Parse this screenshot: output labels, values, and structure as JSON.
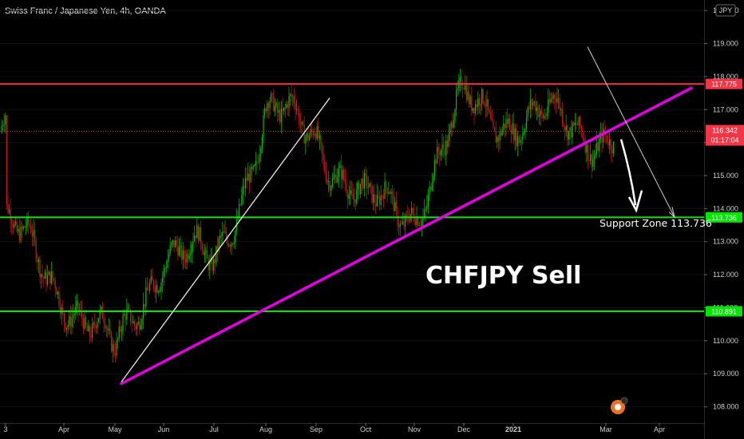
{
  "header": {
    "title": "Swiss Franc / Japanese Yen, 4h, OANDA",
    "currency_button": "JPY"
  },
  "colors": {
    "resistance": "#f23645",
    "support": "#00e600",
    "trendline": "#e100e1",
    "bull_candle": "#00c000",
    "bear_candle": "#d11818",
    "background": "#000000"
  },
  "chart_data": {
    "type": "line",
    "symbol": "CHFJPY",
    "timeframe": "4h",
    "ylim": [
      107.7,
      120.1
    ],
    "x_ticks": [
      "3",
      "Apr",
      "May",
      "Jun",
      "Jul",
      "Aug",
      "Sep",
      "Oct",
      "Nov",
      "Dec",
      "2021",
      "Mar",
      "Apr"
    ],
    "y_ticks": [
      "120.000",
      "119.000",
      "118.000",
      "117.000",
      "116.000",
      "115.000",
      "114.000",
      "113.000",
      "112.000",
      "111.000",
      "110.000",
      "109.000",
      "108.000"
    ],
    "approx_close_path": {
      "x": [
        "3",
        "Apr",
        "May",
        "Jun",
        "Jul",
        "Aug",
        "Sep",
        "Oct",
        "Nov",
        "Dec",
        "2021",
        "Mar"
      ],
      "y": [
        113.5,
        111.5,
        109.5,
        112.8,
        112.2,
        116.8,
        116.3,
        114.0,
        114.0,
        117.1,
        116.8,
        116.3
      ]
    },
    "horizontal_levels": [
      {
        "value": 117.775,
        "label": "117.775",
        "role": "resistance"
      },
      {
        "value": 113.736,
        "label": "113.736",
        "role": "support"
      },
      {
        "value": 110.891,
        "label": "110.891",
        "role": "support"
      }
    ],
    "last_price": {
      "value": "116.342",
      "countdown": "01:17:04"
    },
    "annotations": {
      "support_zone": "Support Zone 113.736",
      "call": "CHFJPY Sell"
    }
  }
}
